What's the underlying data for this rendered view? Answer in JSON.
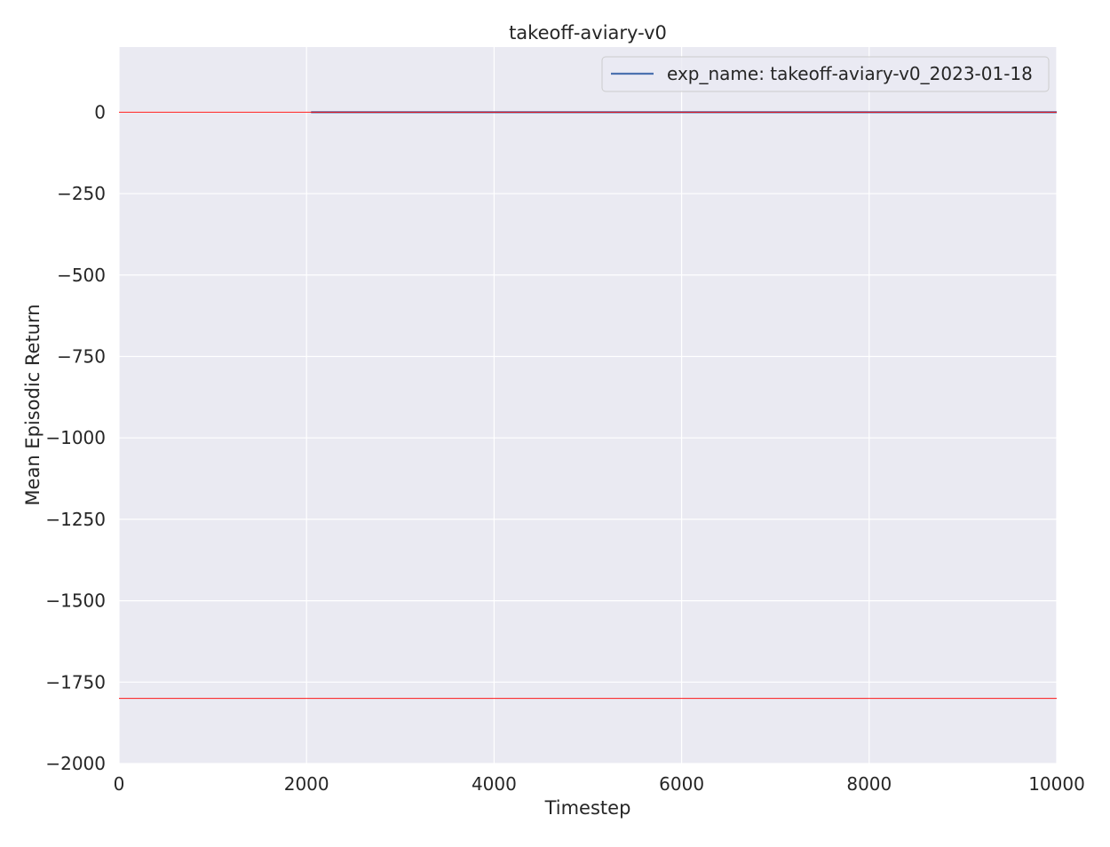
{
  "chart_data": {
    "type": "line",
    "title": "takeoff-aviary-v0",
    "xlabel": "Timestep",
    "ylabel": "Mean Episodic Return",
    "xlim": [
      0,
      10000
    ],
    "ylim": [
      -2000,
      200
    ],
    "xticks": [
      0,
      2000,
      4000,
      6000,
      8000,
      10000
    ],
    "yticks": [
      0,
      -250,
      -500,
      -750,
      -1000,
      -1250,
      -1500,
      -1750,
      -2000
    ],
    "grid": true,
    "legend_position": "top-right",
    "series": [
      {
        "name": "exp_name: takeoff-aviary-v0_2023-01-18",
        "color": "#4c72b0",
        "x": [
          2048,
          4096,
          6144,
          8192,
          10000
        ],
        "y": [
          0,
          0,
          0,
          0,
          0
        ]
      }
    ],
    "reference_lines": [
      {
        "y": 0,
        "color": "#ff0000"
      },
      {
        "y": -1800,
        "color": "#ff0000"
      }
    ],
    "colors": {
      "plot_background": "#eaeaf2",
      "grid": "#ffffff",
      "text": "#262626"
    }
  }
}
